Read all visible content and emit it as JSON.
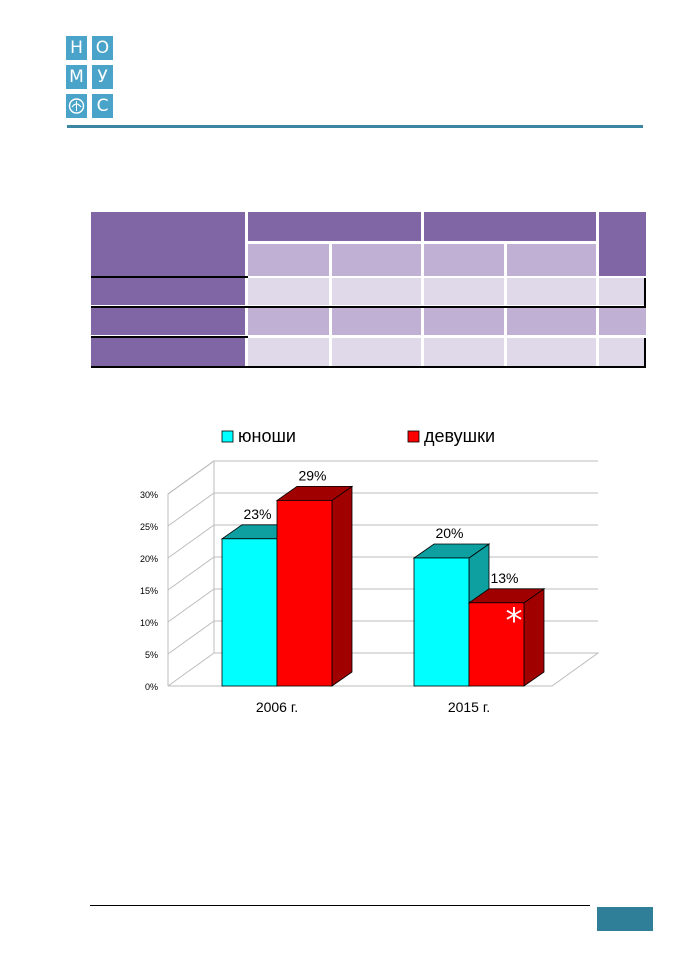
{
  "logo": {
    "letters": [
      "Н",
      "О",
      "М",
      "У",
      "",
      "С"
    ]
  },
  "colors": {
    "brand": "#3b86a0",
    "table_header": "#8166a6",
    "table_light": "#c0b0d3",
    "table_lighter": "#e0d9ea",
    "boys": "#00ffff",
    "girls": "#ff0000",
    "footer_box": "#2f7f99"
  },
  "chart_data": {
    "type": "bar",
    "categories": [
      "2006 г.",
      "2015 г."
    ],
    "series": [
      {
        "name": "юноши",
        "values": [
          23,
          20
        ],
        "labels": [
          "23%",
          "20%"
        ]
      },
      {
        "name": "девушки",
        "values": [
          29,
          13
        ],
        "labels": [
          "29%",
          "13%"
        ]
      }
    ],
    "yticks": [
      "0%",
      "5%",
      "10%",
      "15%",
      "20%",
      "25%",
      "30%"
    ],
    "ylim": [
      0,
      30
    ],
    "grid": true,
    "legend": "top",
    "annotation": "*"
  }
}
